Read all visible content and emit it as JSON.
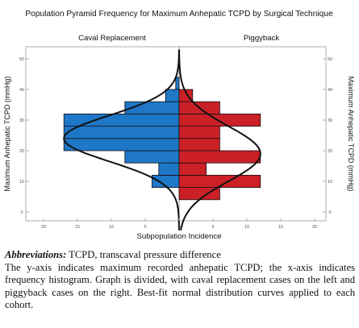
{
  "chart_data": {
    "type": "bar",
    "orientation": "horizontal-population-pyramid",
    "title": "Population Pyramid Frequency for Maximum Anhepatic TCPD by Surgical Technique",
    "xlabel": "Subpopulation Incidence",
    "ylabel_left": "Maximum Anhepatic TCPD (mmHg)",
    "ylabel_right": "Maximum Anhepatic TCPD (mmHg)",
    "ylim": [
      0,
      52
    ],
    "y_ticks": [
      "0",
      "10",
      "20",
      "30",
      "40",
      "50"
    ],
    "xlim_each_side": [
      0,
      20
    ],
    "x_ticks_left": [
      "20",
      "15",
      "10",
      "5",
      "0"
    ],
    "x_ticks_right": [
      "0",
      "5",
      "10",
      "15",
      "20"
    ],
    "grid": false,
    "bin_edges": [
      0,
      4,
      8,
      12,
      16,
      20,
      24,
      28,
      32,
      36,
      40,
      44,
      48
    ],
    "series": [
      {
        "name": "Caval Replacement",
        "side": "left",
        "color": "#1f77c8",
        "values": [
          0,
          0,
          4,
          3,
          8,
          17,
          17,
          17,
          8,
          2,
          0.5,
          0
        ]
      },
      {
        "name": "Piggyback",
        "side": "right",
        "color": "#cc2027",
        "values": [
          0,
          6,
          12,
          4,
          12,
          6,
          6,
          12,
          6,
          2,
          0,
          0
        ]
      }
    ],
    "fit_curves": [
      {
        "series": "Caval Replacement",
        "kind": "normal",
        "mean": 24,
        "sd": 7.5,
        "peak": 17
      },
      {
        "series": "Piggyback",
        "kind": "normal",
        "mean": 19,
        "sd": 9,
        "peak": 12
      }
    ]
  },
  "caption": {
    "abbr_label": "Abbreviations:",
    "abbr_text": " TCPD, transcaval pressure difference",
    "body": "The y-axis indicates maximum recorded anhepatic TCPD; the x-axis indicates frequency histogram. Graph is divided, with caval replacement cases on the left and piggyback cases on the right. Best-fit normal distribution curves applied to each cohort."
  }
}
